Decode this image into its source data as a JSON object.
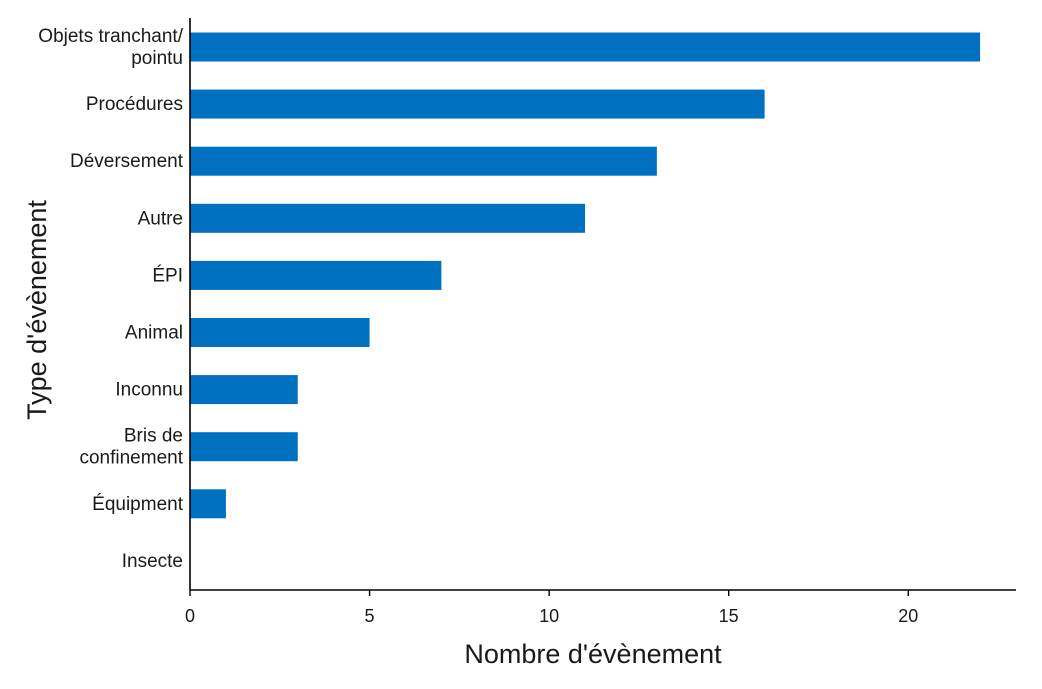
{
  "chart_data": {
    "type": "bar",
    "orientation": "horizontal",
    "title": "",
    "xlabel": "Nombre d'évènement",
    "ylabel": "Type d'évènement",
    "categories": [
      [
        "Objets tranchant/",
        "pointu"
      ],
      [
        "Procédures"
      ],
      [
        "Déversement"
      ],
      [
        "Autre"
      ],
      [
        "ÉPI"
      ],
      [
        "Animal"
      ],
      [
        "Inconnu"
      ],
      [
        "Bris de",
        "confinement"
      ],
      [
        "Équipment"
      ],
      [
        "Insecte"
      ]
    ],
    "values": [
      22,
      16,
      13,
      11,
      7,
      5,
      3,
      3,
      1,
      0
    ],
    "xlim": [
      0,
      23
    ],
    "xticks": [
      0,
      5,
      10,
      15,
      20
    ],
    "grid": false,
    "bar_color": "#0070C0",
    "axis_color": "#000000"
  }
}
